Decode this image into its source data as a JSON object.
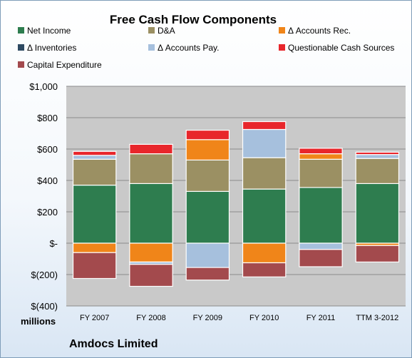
{
  "chart_data": {
    "type": "bar",
    "stacked": true,
    "title": "Free Cash Flow Components",
    "units_label": "millions",
    "footer_label": "Amdocs Limited",
    "categories": [
      "FY 2007",
      "FY 2008",
      "FY 2009",
      "FY 2010",
      "FY 2011",
      "TTM 3-2012"
    ],
    "ylim": [
      -400,
      1000
    ],
    "yticks": [
      -400,
      -200,
      0,
      200,
      400,
      600,
      800,
      1000
    ],
    "ytick_labels": [
      "$(400)",
      "$(200)",
      "$-",
      "$200",
      "$400",
      "$600",
      "$800",
      "$1,000"
    ],
    "grid": true,
    "legend_position": "top",
    "series": [
      {
        "name": "Net Income",
        "color": "#2e7d4f",
        "values": [
          370,
          380,
          330,
          345,
          355,
          380
        ]
      },
      {
        "name": "D&A",
        "color": "#9b9063",
        "values": [
          165,
          190,
          200,
          200,
          180,
          160
        ]
      },
      {
        "name": "Δ Accounts Rec.",
        "color": "#f08519",
        "values": [
          -60,
          -120,
          130,
          -125,
          35,
          -15
        ]
      },
      {
        "name": "Δ Inventories",
        "color": "#2e4a62",
        "values": [
          0,
          0,
          0,
          0,
          0,
          0
        ]
      },
      {
        "name": "Δ Accounts Pay.",
        "color": "#a6c0dd",
        "values": [
          25,
          -15,
          -155,
          180,
          -40,
          25
        ]
      },
      {
        "name": "Questionable Cash Sources",
        "color": "#e8262b",
        "values": [
          25,
          60,
          60,
          50,
          35,
          15
        ]
      },
      {
        "name": "Capital Expenditure",
        "color": "#a34a4d",
        "values": [
          -165,
          -140,
          -80,
          -90,
          -110,
          -105
        ]
      }
    ]
  }
}
